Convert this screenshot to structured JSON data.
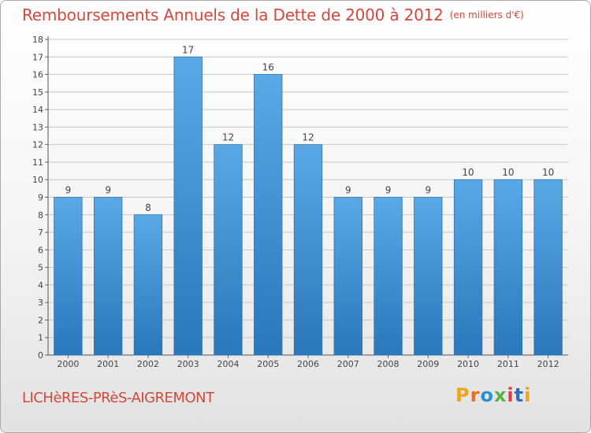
{
  "header": {
    "title": "Remboursements Annuels de la Dette de 2000 à 2012",
    "unit": "(en milliers d'€)"
  },
  "footer": {
    "city": "LICHèRES-PRèS-AIGREMONT",
    "logo": "Proxiti",
    "logo_colors": [
      "#f0a31c",
      "#ef6b1f",
      "#2d8fd3",
      "#5ab14a",
      "#e23a46",
      "#2a6fb7",
      "#f0a31c"
    ]
  },
  "colors": {
    "title": "#d2483c",
    "bar_top": "#5aa9e6",
    "bar_bottom": "#2a77b9",
    "grid": "#c8c8c8"
  },
  "chart_data": {
    "type": "bar",
    "title": "Remboursements Annuels de la Dette de 2000 à 2012",
    "subtitle": "(en milliers d'€)",
    "categories": [
      "2000",
      "2001",
      "2002",
      "2003",
      "2004",
      "2005",
      "2006",
      "2007",
      "2008",
      "2009",
      "2010",
      "2011",
      "2012"
    ],
    "values": [
      9,
      9,
      8,
      17,
      12,
      16,
      12,
      9,
      9,
      9,
      10,
      10,
      10
    ],
    "ylim": [
      0,
      18
    ],
    "yticks": [
      0,
      1,
      2,
      3,
      4,
      5,
      6,
      7,
      8,
      9,
      10,
      11,
      12,
      13,
      14,
      15,
      16,
      17,
      18
    ],
    "grid": true,
    "data_labels": true
  }
}
